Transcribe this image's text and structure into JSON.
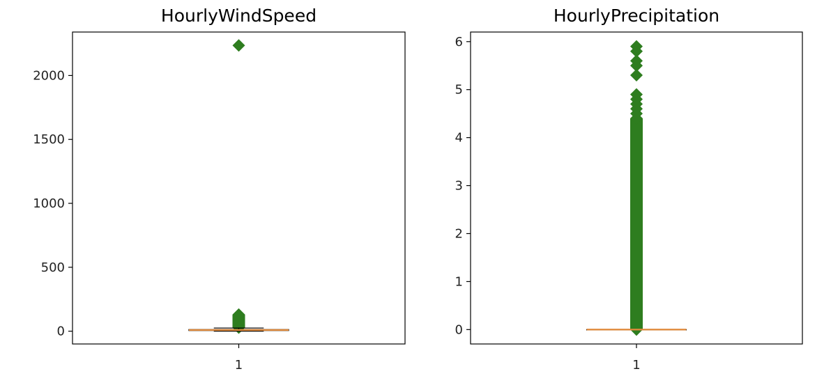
{
  "colors": {
    "outlier": "#2e7d1f",
    "median": "#e08a3c",
    "box": "#000000",
    "axes": "#000000"
  },
  "chart_data": [
    {
      "type": "box",
      "title": "HourlyWindSpeed",
      "xlabel": "",
      "ylabel": "",
      "categories": [
        "1"
      ],
      "ylim": [
        -100,
        2340
      ],
      "yticks": [
        0,
        500,
        1000,
        1500,
        2000
      ],
      "ytick_labels": [
        "0",
        "500",
        "1000",
        "1500",
        "2000"
      ],
      "box": {
        "q1": 5,
        "median": 9,
        "q3": 13,
        "whisker_low": 0,
        "whisker_high": 25
      },
      "outlier_marker": "diamond",
      "outliers": [
        {
          "from": 28,
          "to": 130
        },
        {
          "value": 2235
        }
      ],
      "grid": false
    },
    {
      "type": "box",
      "title": "HourlyPrecipitation",
      "xlabel": "",
      "ylabel": "",
      "categories": [
        "1"
      ],
      "ylim": [
        -0.3,
        6.2
      ],
      "yticks": [
        0,
        1,
        2,
        3,
        4,
        5,
        6
      ],
      "ytick_labels": [
        "0",
        "1",
        "2",
        "3",
        "4",
        "5",
        "6"
      ],
      "box": {
        "q1": 0,
        "median": 0,
        "q3": 0,
        "whisker_low": 0,
        "whisker_high": 0
      },
      "outlier_marker": "diamond",
      "outliers": [
        {
          "from": 0.0,
          "to": 4.4
        },
        {
          "values": [
            4.5,
            4.6,
            4.7,
            4.8,
            4.9,
            5.3,
            5.5,
            5.6,
            5.8,
            5.9
          ]
        }
      ],
      "grid": false
    }
  ]
}
